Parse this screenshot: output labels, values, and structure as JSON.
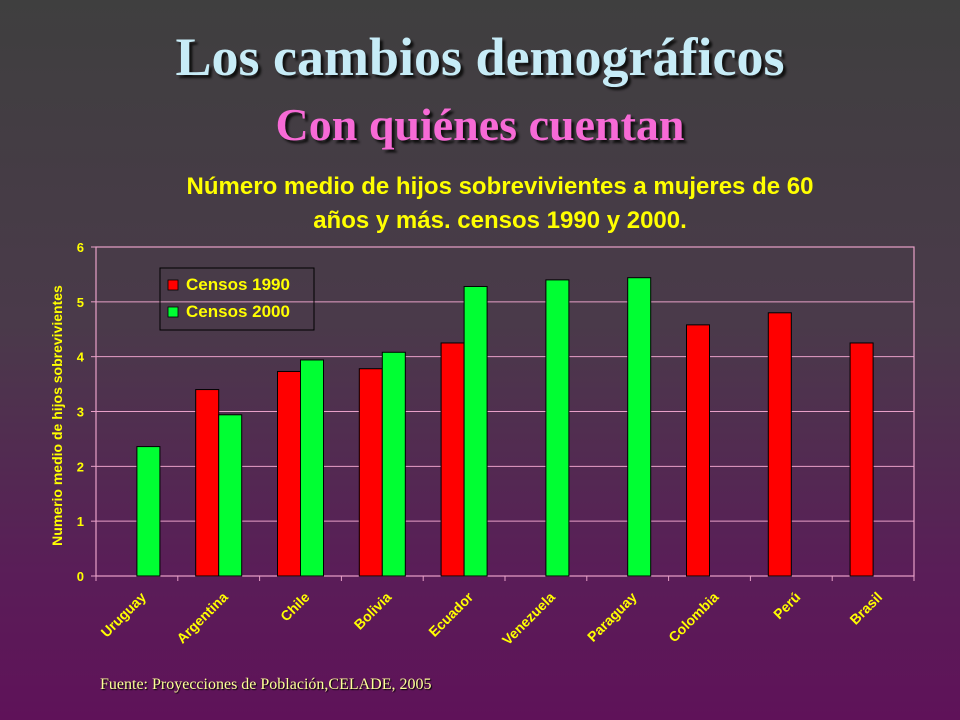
{
  "slide": {
    "title": "Los cambios demográficos",
    "subtitle": "Con quiénes cuentan",
    "source": "Fuente: Proyecciones de Población,CELADE, 2005"
  },
  "colors": {
    "title": "#c7ecf7",
    "subtitle": "#f76ad6",
    "chart_text": "#ffff00",
    "series_1990": "#ff0000",
    "series_2000": "#00ff33",
    "gridline": "#e8a0c8"
  },
  "chart_data": {
    "type": "bar",
    "title_lines": [
      "Número medio de hijos sobrevivientes a mujeres de 60",
      "años y más. censos 1990 y 2000."
    ],
    "xlabel": "",
    "ylabel": "Numerio medio de hijos sobrevivientes",
    "ylim": [
      0,
      6
    ],
    "yticks": [
      "0",
      "1",
      "2",
      "3",
      "4",
      "5",
      "6"
    ],
    "grid": true,
    "legend_position": "top-left",
    "categories": [
      "Uruguay",
      "Argentina",
      "Chile",
      "Bolivia",
      "Ecuador",
      "Venezuela",
      "Paraguay",
      "Colombia",
      "Perú",
      "Brasil"
    ],
    "series": [
      {
        "name": "Censos 1990",
        "color": "#ff0000",
        "values": [
          null,
          3.4,
          3.73,
          3.78,
          4.25,
          null,
          null,
          4.58,
          4.8,
          4.25
        ]
      },
      {
        "name": "Censos 2000",
        "color": "#00ff33",
        "values": [
          2.36,
          2.94,
          3.94,
          4.08,
          5.28,
          5.4,
          5.44,
          null,
          null,
          null
        ]
      }
    ]
  }
}
